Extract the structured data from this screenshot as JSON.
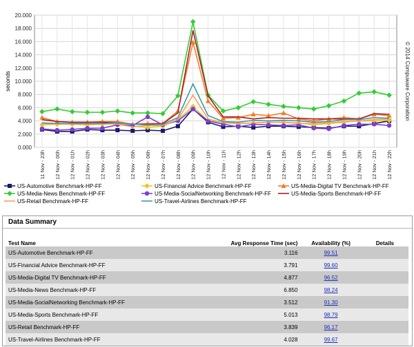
{
  "copyright": "© 2014 Compuware Corporation",
  "chart_data": {
    "type": "line",
    "ylabel": "seconds",
    "xlabel": "",
    "ylim": [
      0,
      20
    ],
    "y_ticks": [
      "0.000",
      "2.000",
      "4.000",
      "6.000",
      "8.000",
      "10.000",
      "12.000",
      "14.000",
      "16.000",
      "18.000",
      "20.000"
    ],
    "grid": true,
    "legend_position": "bottom",
    "categories": [
      "11 Nov - 23h",
      "12 Nov - 00h",
      "12 Nov - 01h",
      "12 Nov - 02h",
      "12 Nov - 03h",
      "12 Nov - 04h",
      "12 Nov - 05h",
      "12 Nov - 06h",
      "12 Nov - 07h",
      "12 Nov - 08h",
      "12 Nov - 09h",
      "12 Nov - 10h",
      "12 Nov - 11h",
      "12 Nov - 12h",
      "12 Nov - 13h",
      "12 Nov - 14h",
      "12 Nov - 15h",
      "12 Nov - 16h",
      "12 Nov - 17h",
      "12 Nov - 18h",
      "12 Nov - 19h",
      "12 Nov - 20h",
      "12 Nov - 21h",
      "12 Nov - 22h"
    ],
    "series": [
      {
        "name": "US-Automotive Benchmark-HP-FF",
        "color": "#1a1a6e",
        "marker": "square",
        "values": [
          2.7,
          2.4,
          2.4,
          2.7,
          2.6,
          2.6,
          2.5,
          2.6,
          2.5,
          3.2,
          5.8,
          3.8,
          3.1,
          3.2,
          3.0,
          3.2,
          3.2,
          3.1,
          3.0,
          2.9,
          3.2,
          3.2,
          3.6,
          4.0
        ]
      },
      {
        "name": "US-Financial Advice Benchmark-HP-FF",
        "color": "#f2c229",
        "marker": "diamond",
        "values": [
          3.4,
          3.5,
          3.5,
          3.4,
          3.5,
          3.6,
          3.2,
          3.0,
          3.2,
          4.2,
          6.2,
          4.0,
          3.8,
          3.6,
          3.7,
          3.8,
          3.8,
          3.7,
          3.4,
          3.6,
          3.8,
          4.0,
          4.0,
          4.1
        ]
      },
      {
        "name": "US-Media-Digital TV Benchmark-HP-FF",
        "color": "#f07e26",
        "marker": "triangle",
        "values": [
          4.5,
          3.9,
          3.8,
          3.8,
          3.9,
          3.9,
          3.5,
          3.6,
          3.6,
          5.5,
          15.9,
          7.0,
          4.4,
          4.5,
          5.0,
          4.8,
          5.2,
          4.3,
          4.0,
          4.3,
          4.5,
          4.3,
          5.0,
          4.8
        ]
      },
      {
        "name": "US-Media-News Benchmark-HP-FF",
        "color": "#33cc33",
        "marker": "diamond",
        "values": [
          5.4,
          5.8,
          5.4,
          5.3,
          5.3,
          5.5,
          5.2,
          5.2,
          5.1,
          7.8,
          19.0,
          7.9,
          5.5,
          6.0,
          6.9,
          6.5,
          6.2,
          6.0,
          5.8,
          6.3,
          7.0,
          8.2,
          8.4,
          7.9
        ]
      },
      {
        "name": "US-Media-SocialNetworking Benchmark-HP-FF",
        "color": "#7b3fd1",
        "marker": "circle",
        "values": [
          2.8,
          2.6,
          2.7,
          2.9,
          2.9,
          3.4,
          3.3,
          4.6,
          3.4,
          4.0,
          5.8,
          4.0,
          3.5,
          3.1,
          3.5,
          3.4,
          3.3,
          3.4,
          2.9,
          2.8,
          3.3,
          3.5,
          3.5,
          3.3
        ]
      },
      {
        "name": "US-Media-Sports Benchmark-HP-FF",
        "color": "#b01a2a",
        "marker": "none",
        "values": [
          4.2,
          3.9,
          3.8,
          3.8,
          3.8,
          3.7,
          3.5,
          3.5,
          3.6,
          5.2,
          17.7,
          7.8,
          4.6,
          4.6,
          4.3,
          4.5,
          4.4,
          4.4,
          4.3,
          4.3,
          4.3,
          4.3,
          5.1,
          5.0
        ]
      },
      {
        "name": "US-Retail Benchmark-HP-FF",
        "color": "#f5a05a",
        "marker": "none",
        "values": [
          3.6,
          3.6,
          3.6,
          3.5,
          3.6,
          3.5,
          3.1,
          3.3,
          3.3,
          4.2,
          7.9,
          4.3,
          3.7,
          3.6,
          3.7,
          3.8,
          3.8,
          3.6,
          3.6,
          3.7,
          3.9,
          4.0,
          4.2,
          4.3
        ]
      },
      {
        "name": "US-Travel-Airlines Benchmark-HP-FF",
        "color": "#3a9aa6",
        "marker": "none",
        "values": [
          3.7,
          3.6,
          3.6,
          3.6,
          3.6,
          3.7,
          3.5,
          3.4,
          3.5,
          4.5,
          9.6,
          4.8,
          3.9,
          3.8,
          4.1,
          4.0,
          4.1,
          4.0,
          3.8,
          3.9,
          4.2,
          4.2,
          4.5,
          4.4
        ]
      }
    ]
  },
  "legend": {
    "items": [
      "US-Automotive Benchmark-HP-FF",
      "US-Financial Advice Benchmark-HP-FF",
      "US-Media-Digital TV Benchmark-HP-FF",
      "US-Media-News Benchmark-HP-FF",
      "US-Media-SocialNetworking Benchmark-HP-FF",
      "US-Media-Sports Benchmark-HP-FF",
      "US-Retail Benchmark-HP-FF",
      "US-Travel-Airlines Benchmark-HP-FF"
    ]
  },
  "summary": {
    "title": "Data Summary",
    "headers": {
      "test_name": "Test Name",
      "avg_response": "Avg Response Time (sec)",
      "availability": "Availability (%)",
      "details": "Details"
    },
    "rows": [
      {
        "name": "US-Automotive Benchmark-HP-FF",
        "avg": "3.116",
        "availability": "99.51"
      },
      {
        "name": "US-Financial Advice Benchmark-HP-FF",
        "avg": "3.791",
        "availability": "99.60"
      },
      {
        "name": "US-Media-Digital TV Benchmark-HP-FF",
        "avg": "4.877",
        "availability": "96.52"
      },
      {
        "name": "US-Media-News Benchmark-HP-FF",
        "avg": "6.850",
        "availability": "98.24"
      },
      {
        "name": "US-Media-SocialNetworking Benchmark-HP-FF",
        "avg": "3.512",
        "availability": "91.30"
      },
      {
        "name": "US-Media-Sports Benchmark-HP-FF",
        "avg": "5.013",
        "availability": "98.79"
      },
      {
        "name": "US-Retail Benchmark-HP-FF",
        "avg": "3.839",
        "availability": "96.17"
      },
      {
        "name": "US-Travel-Airlines Benchmark-HP-FF",
        "avg": "4.028",
        "availability": "99.67"
      }
    ]
  }
}
